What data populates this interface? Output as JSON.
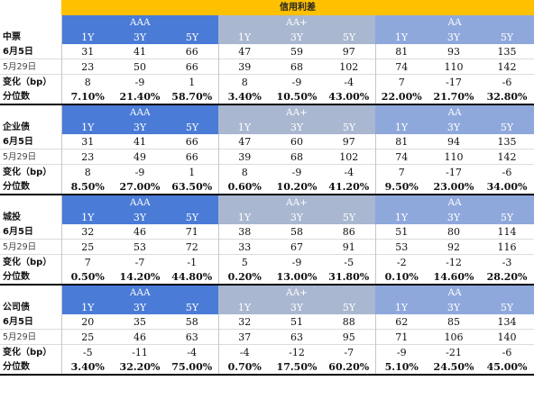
{
  "title": "信用利差",
  "group_names": [
    "AAA",
    "AA+",
    "AA"
  ],
  "tenors": [
    "1Y",
    "3Y",
    "5Y"
  ],
  "row_labels": [
    "6月5日",
    "5月29日",
    "变化（bp）",
    "分位数"
  ],
  "sections": [
    {
      "name": "中票",
      "rows": [
        [
          "31",
          "41",
          "66",
          "47",
          "59",
          "97",
          "81",
          "93",
          "135"
        ],
        [
          "23",
          "50",
          "66",
          "39",
          "68",
          "102",
          "74",
          "110",
          "142"
        ],
        [
          "8",
          "-9",
          "1",
          "8",
          "-9",
          "-4",
          "7",
          "-17",
          "-6"
        ],
        [
          "7.10%",
          "21.40%",
          "58.70%",
          "3.40%",
          "10.50%",
          "43.00%",
          "22.00%",
          "21.70%",
          "32.80%"
        ]
      ]
    },
    {
      "name": "企业债",
      "rows": [
        [
          "31",
          "41",
          "66",
          "47",
          "60",
          "97",
          "81",
          "94",
          "135"
        ],
        [
          "23",
          "49",
          "66",
          "39",
          "68",
          "102",
          "74",
          "110",
          "142"
        ],
        [
          "8",
          "-9",
          "1",
          "8",
          "-9",
          "-4",
          "7",
          "-17",
          "-6"
        ],
        [
          "8.50%",
          "27.00%",
          "63.50%",
          "0.60%",
          "10.20%",
          "41.20%",
          "9.50%",
          "23.00%",
          "34.00%"
        ]
      ]
    },
    {
      "name": "城投",
      "rows": [
        [
          "32",
          "46",
          "71",
          "38",
          "58",
          "86",
          "51",
          "80",
          "114"
        ],
        [
          "25",
          "53",
          "72",
          "33",
          "67",
          "91",
          "53",
          "92",
          "116"
        ],
        [
          "7",
          "-7",
          "-1",
          "5",
          "-9",
          "-5",
          "-2",
          "-12",
          "-3"
        ],
        [
          "0.50%",
          "14.20%",
          "44.80%",
          "0.20%",
          "13.00%",
          "31.80%",
          "0.10%",
          "14.60%",
          "28.20%"
        ]
      ]
    },
    {
      "name": "公司债",
      "rows": [
        [
          "20",
          "35",
          "58",
          "32",
          "51",
          "88",
          "62",
          "85",
          "134"
        ],
        [
          "25",
          "46",
          "63",
          "37",
          "63",
          "95",
          "71",
          "106",
          "140"
        ],
        [
          "-5",
          "-11",
          "-4",
          "-4",
          "-12",
          "-7",
          "-9",
          "-21",
          "-6"
        ],
        [
          "3.40%",
          "32.20%",
          "75.00%",
          "0.70%",
          "17.50%",
          "60.20%",
          "5.10%",
          "24.50%",
          "45.00%"
        ]
      ]
    }
  ]
}
